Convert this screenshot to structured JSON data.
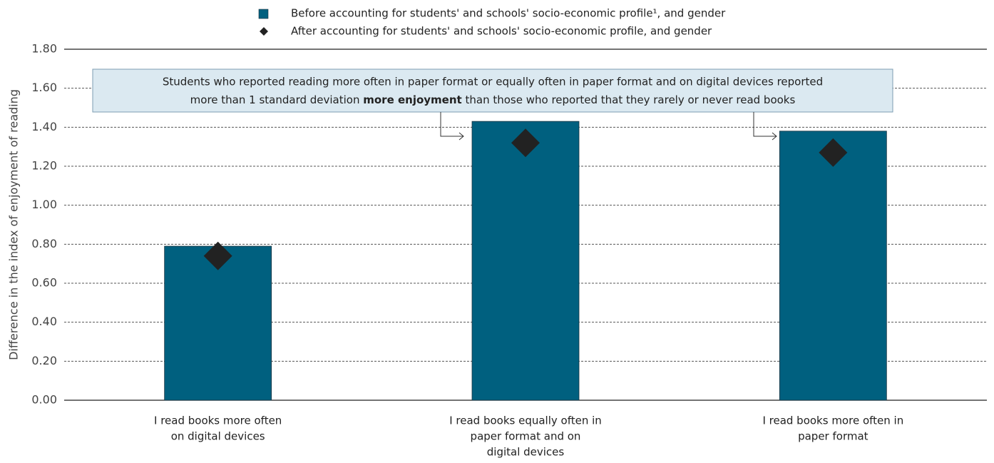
{
  "chart_data": {
    "type": "bar",
    "y_label": "Difference in the index of enjoyment of reading",
    "categories": [
      [
        "I read books more often",
        "on digital devices"
      ],
      [
        "I read books equally often in",
        "paper format and on",
        "digital devices"
      ],
      [
        "I read books more often in",
        "paper format"
      ]
    ],
    "series": [
      {
        "name": "Before accounting for students' and schools' socio-economic profile¹, and gender",
        "color": "#00607f",
        "mark": "bar",
        "values": [
          0.79,
          1.43,
          1.38
        ]
      },
      {
        "name": "After accounting for students' and schools' socio-economic profile, and gender",
        "color": "#222222",
        "mark": "diamond",
        "values": [
          0.74,
          1.32,
          1.27
        ]
      }
    ],
    "annotation": [
      "Students who reported reading more often in paper format or equally often in paper format and on digital devices reported",
      "more than 1 standard deviation ",
      "more enjoyment",
      " than those who reported that they rarely or never read books"
    ],
    "ylim": [
      0,
      1.8
    ],
    "yticks": [
      {
        "value": 0,
        "label": "0.00"
      },
      {
        "value": 0.2,
        "label": "0.20"
      },
      {
        "value": 0.4,
        "label": "0.40"
      },
      {
        "value": 0.6,
        "label": "0.60"
      },
      {
        "value": 0.8,
        "label": "0.80"
      },
      {
        "value": 1.0,
        "label": "1.00"
      },
      {
        "value": 1.2,
        "label": "1.20"
      },
      {
        "value": 1.4,
        "label": "1.40"
      },
      {
        "value": 1.6,
        "label": "1.60"
      },
      {
        "value": 1.8,
        "label": "1.80"
      }
    ],
    "grid": true
  }
}
